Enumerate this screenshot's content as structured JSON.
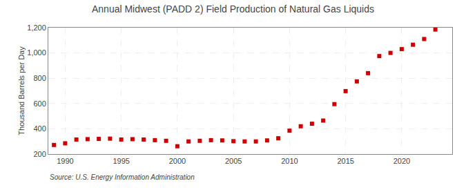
{
  "chart_data": {
    "type": "scatter",
    "title": "Annual Midwest (PADD 2) Field Production of Natural Gas Liquids",
    "y_label": "Thousand Barrels per Day",
    "annotations": [
      "Source: U.S. Energy Information Administration"
    ],
    "x": [
      1989,
      1990,
      1991,
      1992,
      1993,
      1994,
      1995,
      1996,
      1997,
      1998,
      1999,
      2000,
      2001,
      2002,
      2003,
      2004,
      2005,
      2006,
      2007,
      2008,
      2009,
      2010,
      2011,
      2012,
      2013,
      2014,
      2015,
      2016,
      2017,
      2018,
      2019,
      2020,
      2021,
      2022,
      2023
    ],
    "values": [
      272,
      285,
      315,
      318,
      320,
      322,
      315,
      318,
      315,
      310,
      305,
      262,
      300,
      305,
      310,
      308,
      302,
      300,
      300,
      308,
      325,
      385,
      420,
      440,
      465,
      595,
      698,
      775,
      840,
      975,
      1000,
      1030,
      1065,
      1110,
      1185
    ],
    "color": "#cc0000",
    "marker": "square",
    "xlim": [
      1988.5,
      2024.5
    ],
    "xticks": [
      1990,
      1995,
      2000,
      2005,
      2010,
      2015,
      2020
    ],
    "ylim": [
      200,
      1200
    ],
    "yticks": [
      200,
      400,
      600,
      800,
      {
        "value": 1000,
        "label": "1,000"
      },
      {
        "value": 1200,
        "label": "1,200"
      }
    ],
    "grid": true
  }
}
